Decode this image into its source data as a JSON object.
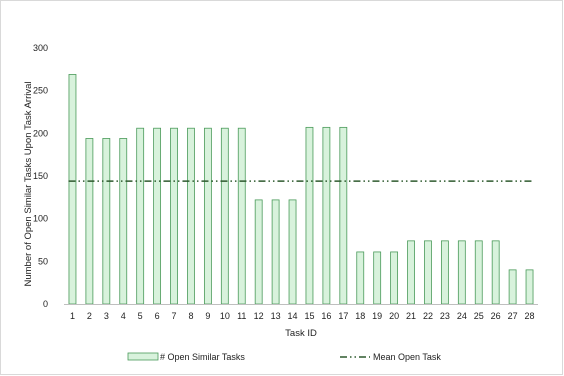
{
  "chart_data": {
    "type": "bar",
    "title": "",
    "xlabel": "Task ID",
    "ylabel": "Number of Open Similar Tasks Upon Task Arrival",
    "ylim": [
      0,
      300
    ],
    "yticks": [
      "0",
      "50",
      "100",
      "150",
      "200",
      "250",
      "300"
    ],
    "grid": false,
    "legend_position": "bottom",
    "categories": [
      "1",
      "2",
      "3",
      "4",
      "5",
      "6",
      "7",
      "8",
      "9",
      "10",
      "11",
      "12",
      "13",
      "14",
      "15",
      "16",
      "17",
      "18",
      "19",
      "20",
      "21",
      "22",
      "23",
      "24",
      "25",
      "26",
      "27",
      "28"
    ],
    "series": [
      {
        "name": "# Open Similar Tasks",
        "type": "bar",
        "color": "#d8f2dc",
        "edge_color": "#4a9a5a",
        "values": [
          269,
          194,
          194,
          194,
          206,
          206,
          206,
          206,
          206,
          206,
          206,
          122,
          122,
          122,
          207,
          207,
          207,
          61,
          61,
          61,
          74,
          74,
          74,
          74,
          74,
          74,
          40,
          40
        ]
      },
      {
        "name": "Mean Open Task",
        "type": "line",
        "style": "dash-dot-dot",
        "color": "#2e5a2e",
        "values": [
          144,
          144,
          144,
          144,
          144,
          144,
          144,
          144,
          144,
          144,
          144,
          144,
          144,
          144,
          144,
          144,
          144,
          144,
          144,
          144,
          144,
          144,
          144,
          144,
          144,
          144,
          144,
          144
        ]
      }
    ]
  }
}
